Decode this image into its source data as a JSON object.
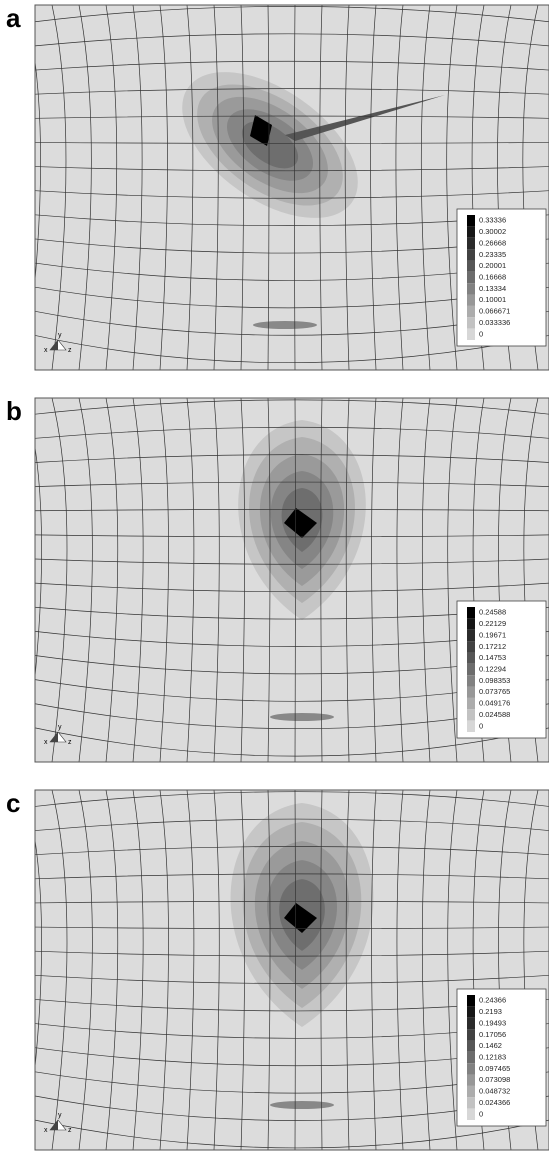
{
  "panels": [
    {
      "label": "a",
      "triad": [
        "y",
        "x",
        "z"
      ],
      "legend": [
        "0.33336",
        "0.30002",
        "0.26668",
        "0.23335",
        "0.20001",
        "0.16668",
        "0.13334",
        "0.10001",
        "0.066671",
        "0.033336",
        "0"
      ]
    },
    {
      "label": "b",
      "triad": [
        "y",
        "x",
        "z"
      ],
      "legend": [
        "0.24588",
        "0.22129",
        "0.19671",
        "0.17212",
        "0.14753",
        "0.12294",
        "0.098353",
        "0.073765",
        "0.049176",
        "0.024588",
        "0"
      ]
    },
    {
      "label": "c",
      "triad": [
        "y",
        "x",
        "z"
      ],
      "legend": [
        "0.24366",
        "0.2193",
        "0.19493",
        "0.17056",
        "0.1462",
        "0.12183",
        "0.097465",
        "0.073098",
        "0.048732",
        "0.024366",
        "0"
      ]
    }
  ]
}
